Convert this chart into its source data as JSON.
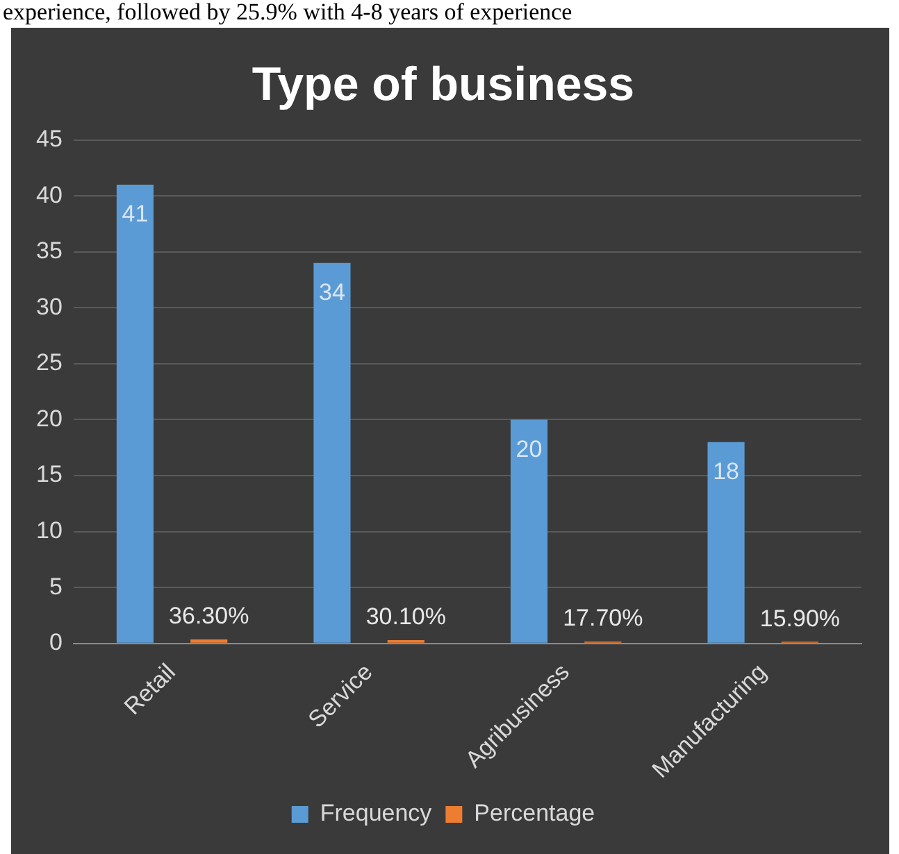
{
  "chart_data": {
    "type": "bar",
    "title": "Type of business",
    "annotations": [
      "experience, followed by 25.9% with 4-8 years of experience"
    ],
    "categories": [
      "Retail",
      "Service",
      "Agribusiness",
      "Manufacturing"
    ],
    "series": [
      {
        "name": "Frequency",
        "color": "#5b9bd5",
        "values": [
          41,
          34,
          20,
          18
        ],
        "value_labels": [
          "41",
          "34",
          "20",
          "18"
        ]
      },
      {
        "name": "Percentage",
        "color": "#ed7d31",
        "values": [
          0.363,
          0.301,
          0.177,
          0.159
        ],
        "value_labels": [
          "36.30%",
          "30.10%",
          "17.70%",
          "15.90%"
        ]
      }
    ],
    "ylim": [
      0,
      45
    ],
    "yticks": [
      0,
      5,
      10,
      15,
      20,
      25,
      30,
      35,
      40,
      45
    ],
    "grid": "y",
    "legend": "bottom"
  }
}
